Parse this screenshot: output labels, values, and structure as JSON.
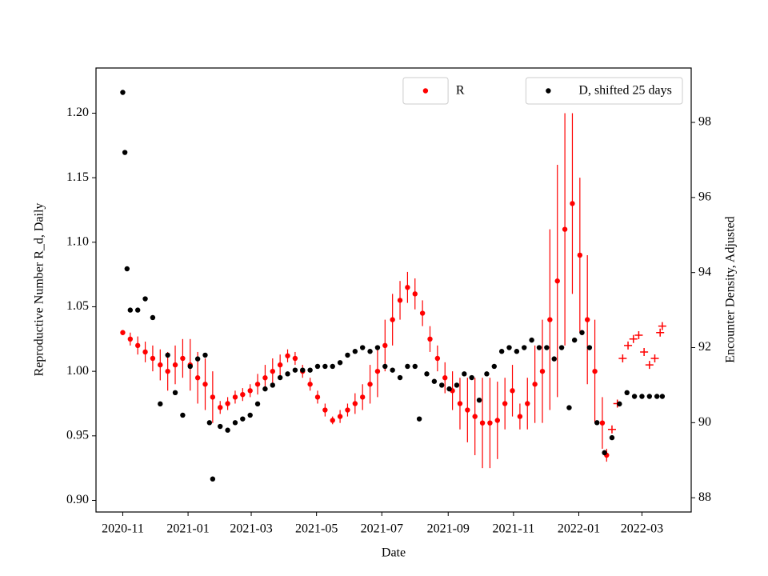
{
  "chart_data": {
    "type": "scatter",
    "x_label": "Date",
    "y_label": "Reproductive Number R_d, Daily",
    "y2_label": "Encounter Density, Adjusted",
    "xlim": [
      "2020-10-07",
      "2022-04-16"
    ],
    "xticks": [
      {
        "value": "2020-11-01",
        "label": "2020-11"
      },
      {
        "value": "2021-01-01",
        "label": "2021-01"
      },
      {
        "value": "2021-03-01",
        "label": "2021-03"
      },
      {
        "value": "2021-05-01",
        "label": "2021-05"
      },
      {
        "value": "2021-07-01",
        "label": "2021-07"
      },
      {
        "value": "2021-09-01",
        "label": "2021-09"
      },
      {
        "value": "2021-11-01",
        "label": "2021-11"
      },
      {
        "value": "2022-01-01",
        "label": "2022-01"
      },
      {
        "value": "2022-03-01",
        "label": "2022-03"
      }
    ],
    "ylim": [
      0.891,
      1.235
    ],
    "yticks": [
      {
        "value": 0.9,
        "label": "0.90"
      },
      0.95,
      {
        "value": 1.0,
        "label": "1.00"
      },
      1.05,
      {
        "value": 1.1,
        "label": "1.10"
      },
      1.15,
      {
        "value": 1.2,
        "label": "1.20"
      }
    ],
    "y2lim": [
      87.62,
      99.45
    ],
    "y2ticks": [
      88,
      90,
      92,
      94,
      96,
      98
    ],
    "y_label_color": "#ff0000",
    "series": [
      {
        "name": "R",
        "color": "#ff0000",
        "marker": "o",
        "legend": "upper center",
        "x": [
          "2020-11-01",
          "2020-11-08",
          "2020-11-15",
          "2020-11-22",
          "2020-11-29",
          "2020-12-06",
          "2020-12-13",
          "2020-12-20",
          "2020-12-27",
          "2021-01-03",
          "2021-01-10",
          "2021-01-17",
          "2021-01-24",
          "2021-01-31",
          "2021-02-07",
          "2021-02-14",
          "2021-02-21",
          "2021-02-28",
          "2021-03-07",
          "2021-03-14",
          "2021-03-21",
          "2021-03-28",
          "2021-04-04",
          "2021-04-11",
          "2021-04-18",
          "2021-04-25",
          "2021-05-02",
          "2021-05-09",
          "2021-05-16",
          "2021-05-23",
          "2021-05-30",
          "2021-06-06",
          "2021-06-13",
          "2021-06-20",
          "2021-06-27",
          "2021-07-04",
          "2021-07-11",
          "2021-07-18",
          "2021-07-25",
          "2021-08-01",
          "2021-08-08",
          "2021-08-15",
          "2021-08-22",
          "2021-08-29",
          "2021-09-05",
          "2021-09-12",
          "2021-09-19",
          "2021-09-26",
          "2021-10-03",
          "2021-10-10",
          "2021-10-17",
          "2021-10-24",
          "2021-10-31",
          "2021-11-07",
          "2021-11-14",
          "2021-11-21",
          "2021-11-28",
          "2021-12-05",
          "2021-12-12",
          "2021-12-19",
          "2021-12-26",
          "2022-01-02",
          "2022-01-09",
          "2022-01-16",
          "2022-01-23",
          "2022-01-27"
        ],
        "values": [
          1.03,
          1.025,
          1.02,
          1.015,
          1.01,
          1.005,
          1.0,
          1.005,
          1.01,
          1.005,
          0.995,
          0.99,
          0.98,
          0.972,
          0.975,
          0.98,
          0.982,
          0.985,
          0.99,
          0.995,
          1.0,
          1.005,
          1.012,
          1.01,
          1.0,
          0.99,
          0.98,
          0.97,
          0.962,
          0.965,
          0.97,
          0.975,
          0.98,
          0.99,
          1.0,
          1.02,
          1.04,
          1.055,
          1.065,
          1.06,
          1.045,
          1.025,
          1.01,
          0.995,
          0.985,
          0.975,
          0.97,
          0.965,
          0.96,
          0.96,
          0.962,
          0.975,
          0.985,
          0.965,
          0.975,
          0.99,
          1.0,
          1.04,
          1.07,
          1.11,
          1.13,
          1.09,
          1.04,
          1.0,
          0.96,
          0.935
        ],
        "errors": [
          0.002,
          0.005,
          0.007,
          0.008,
          0.01,
          0.012,
          0.015,
          0.015,
          0.015,
          0.02,
          0.02,
          0.02,
          0.02,
          0.005,
          0.005,
          0.005,
          0.005,
          0.005,
          0.008,
          0.01,
          0.01,
          0.008,
          0.005,
          0.005,
          0.005,
          0.005,
          0.005,
          0.005,
          0.003,
          0.005,
          0.005,
          0.008,
          0.01,
          0.015,
          0.02,
          0.02,
          0.02,
          0.015,
          0.012,
          0.012,
          0.01,
          0.01,
          0.01,
          0.012,
          0.015,
          0.02,
          0.025,
          0.03,
          0.035,
          0.035,
          0.03,
          0.02,
          0.02,
          0.01,
          0.02,
          0.03,
          0.04,
          0.07,
          0.09,
          0.09,
          0.07,
          0.06,
          0.05,
          0.04,
          0.02,
          0.005
        ]
      },
      {
        "color": "#ff0000",
        "marker": "+",
        "x": [
          "2022-02-01",
          "2022-02-06",
          "2022-02-11",
          "2022-02-16",
          "2022-02-21",
          "2022-02-26",
          "2022-03-03",
          "2022-03-08",
          "2022-03-13",
          "2022-03-18",
          "2022-03-20"
        ],
        "values": [
          0.955,
          0.975,
          1.01,
          1.02,
          1.025,
          1.028,
          1.015,
          1.005,
          1.01,
          1.03,
          1.035
        ]
      },
      {
        "name": "D, shifted 25 days",
        "color": "#000000",
        "marker": "o",
        "axis": "y2",
        "legend": "upper right",
        "x": [
          "2020-11-01",
          "2020-11-03",
          "2020-11-05",
          "2020-11-08",
          "2020-11-15",
          "2020-11-22",
          "2020-11-29",
          "2020-12-06",
          "2020-12-13",
          "2020-12-20",
          "2020-12-27",
          "2021-01-03",
          "2021-01-10",
          "2021-01-17",
          "2021-01-21",
          "2021-01-24",
          "2021-01-31",
          "2021-02-07",
          "2021-02-14",
          "2021-02-21",
          "2021-02-28",
          "2021-03-07",
          "2021-03-14",
          "2021-03-21",
          "2021-03-28",
          "2021-04-04",
          "2021-04-11",
          "2021-04-18",
          "2021-04-25",
          "2021-05-02",
          "2021-05-09",
          "2021-05-16",
          "2021-05-23",
          "2021-05-30",
          "2021-06-06",
          "2021-06-13",
          "2021-06-20",
          "2021-06-27",
          "2021-07-04",
          "2021-07-11",
          "2021-07-18",
          "2021-07-25",
          "2021-08-01",
          "2021-08-05",
          "2021-08-12",
          "2021-08-19",
          "2021-08-26",
          "2021-09-02",
          "2021-09-09",
          "2021-09-16",
          "2021-09-23",
          "2021-09-30",
          "2021-10-07",
          "2021-10-14",
          "2021-10-21",
          "2021-10-28",
          "2021-11-04",
          "2021-11-11",
          "2021-11-18",
          "2021-11-25",
          "2021-12-02",
          "2021-12-09",
          "2021-12-16",
          "2021-12-23",
          "2021-12-28",
          "2022-01-04",
          "2022-01-11",
          "2022-01-18",
          "2022-01-25",
          "2022-02-01",
          "2022-02-08",
          "2022-02-15",
          "2022-02-22",
          "2022-03-01",
          "2022-03-08",
          "2022-03-15",
          "2022-03-20"
        ],
        "values": [
          98.8,
          97.2,
          94.1,
          93.0,
          93.0,
          93.3,
          92.8,
          90.5,
          91.8,
          90.8,
          90.2,
          91.5,
          91.7,
          91.8,
          90.0,
          88.5,
          89.9,
          89.8,
          90.0,
          90.1,
          90.2,
          90.5,
          90.9,
          91.0,
          91.2,
          91.3,
          91.4,
          91.4,
          91.4,
          91.5,
          91.5,
          91.5,
          91.6,
          91.8,
          91.9,
          92.0,
          91.9,
          92.0,
          91.5,
          91.4,
          91.2,
          91.5,
          91.5,
          90.1,
          91.3,
          91.1,
          91.0,
          90.9,
          91.0,
          91.3,
          91.2,
          90.6,
          91.3,
          91.5,
          91.9,
          92.0,
          91.9,
          92.0,
          92.2,
          92.0,
          92.0,
          91.7,
          92.0,
          90.4,
          92.2,
          92.4,
          92.0,
          90.0,
          89.2,
          89.6,
          90.5,
          90.8,
          90.7,
          90.7,
          90.7,
          90.7,
          90.7
        ]
      }
    ]
  }
}
